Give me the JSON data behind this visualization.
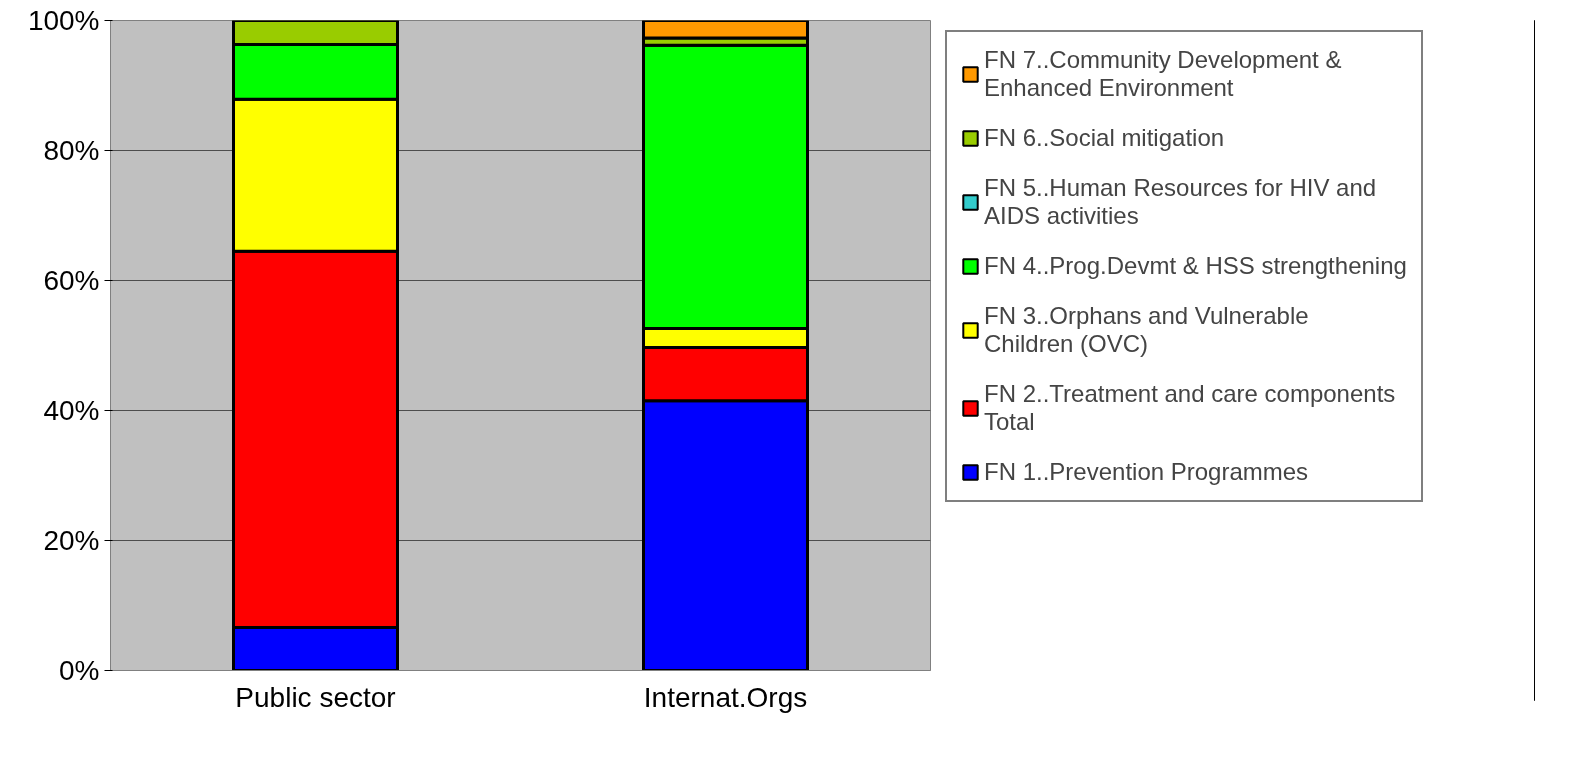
{
  "chart_data": {
    "type": "bar",
    "stacked": true,
    "categories": [
      "Public sector",
      "Internat.Orgs"
    ],
    "series": [
      {
        "name": "FN 1..Prevention Programmes",
        "color": "#0000ff",
        "values": [
          6.6,
          41.5
        ]
      },
      {
        "name": "FN 2..Treatment and care components Total",
        "color": "#ff0000",
        "values": [
          57.9,
          8.2
        ]
      },
      {
        "name": "FN 3..Orphans and Vulnerable Children (OVC)",
        "color": "#ffff00",
        "values": [
          23.4,
          2.9
        ]
      },
      {
        "name": "FN 4..Prog.Devmt & HSS strengthening",
        "color": "#00ff00",
        "values": [
          8.4,
          43.6
        ]
      },
      {
        "name": "FN 5..Human Resources for HIV and AIDS activities",
        "color": "#33cccc",
        "values": [
          0,
          0
        ]
      },
      {
        "name": "FN 6..Social mitigation",
        "color": "#99cc00",
        "values": [
          3.7,
          1.1
        ]
      },
      {
        "name": "FN 7..Community Development & Enhanced Environment",
        "color": "#ff9900",
        "values": [
          0,
          2.7
        ]
      }
    ],
    "ylim": [
      0,
      100
    ],
    "yticks": [
      {
        "value": 0,
        "label": "0%"
      },
      {
        "value": 20,
        "label": "20%"
      },
      {
        "value": 40,
        "label": "40%"
      },
      {
        "value": 60,
        "label": "60%"
      },
      {
        "value": 80,
        "label": "80%"
      },
      {
        "value": 100,
        "label": "100%"
      }
    ],
    "grid": "y",
    "legend": "right"
  }
}
